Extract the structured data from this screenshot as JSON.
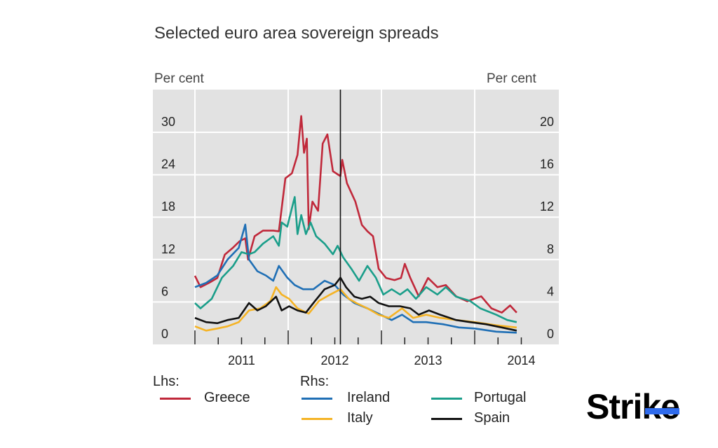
{
  "chart_data": {
    "type": "line",
    "title": "Selected euro area sovereign spreads",
    "ylabel_left": "Per cent",
    "ylabel_right": "Per cent",
    "ylim_left": [
      0,
      30
    ],
    "ylim_right": [
      0,
      20
    ],
    "yticks_left": [
      "0",
      "6",
      "12",
      "18",
      "24",
      "30"
    ],
    "yticks_right": [
      "0",
      "4",
      "8",
      "12",
      "16",
      "20"
    ],
    "xticks": [
      "2011",
      "2012",
      "2013",
      "2014"
    ],
    "xlim": [
      2010.8,
      2014.9
    ],
    "grid": true,
    "vertical_marker": 2012.56,
    "legend": {
      "lhs_label": "Lhs:",
      "rhs_label": "Rhs:",
      "placement": "bottom"
    },
    "series": [
      {
        "name": "Greece",
        "axis": "left",
        "color": "#c0283a",
        "points": [
          [
            2011.0,
            9.7
          ],
          [
            2011.06,
            8.1
          ],
          [
            2011.15,
            8.7
          ],
          [
            2011.24,
            9.4
          ],
          [
            2011.32,
            12.7
          ],
          [
            2011.41,
            13.7
          ],
          [
            2011.48,
            14.6
          ],
          [
            2011.54,
            15.0
          ],
          [
            2011.57,
            12.0
          ],
          [
            2011.64,
            15.3
          ],
          [
            2011.73,
            16.1
          ],
          [
            2011.84,
            16.1
          ],
          [
            2011.9,
            16.0
          ],
          [
            2011.97,
            23.5
          ],
          [
            2012.04,
            24.2
          ],
          [
            2012.1,
            26.8
          ],
          [
            2012.14,
            32.3
          ],
          [
            2012.17,
            27.1
          ],
          [
            2012.2,
            29.1
          ],
          [
            2012.22,
            16.3
          ],
          [
            2012.26,
            20.2
          ],
          [
            2012.32,
            18.9
          ],
          [
            2012.37,
            28.4
          ],
          [
            2012.42,
            29.7
          ],
          [
            2012.48,
            24.5
          ],
          [
            2012.56,
            23.8
          ],
          [
            2012.58,
            26.1
          ],
          [
            2012.63,
            22.8
          ],
          [
            2012.72,
            20.2
          ],
          [
            2012.79,
            16.9
          ],
          [
            2012.85,
            16.0
          ],
          [
            2012.91,
            15.3
          ],
          [
            2012.97,
            10.7
          ],
          [
            2013.05,
            9.4
          ],
          [
            2013.14,
            9.1
          ],
          [
            2013.21,
            9.4
          ],
          [
            2013.25,
            11.4
          ],
          [
            2013.31,
            9.4
          ],
          [
            2013.4,
            6.8
          ],
          [
            2013.5,
            9.4
          ],
          [
            2013.6,
            8.1
          ],
          [
            2013.69,
            8.4
          ],
          [
            2013.8,
            6.8
          ],
          [
            2013.92,
            6.1
          ],
          [
            2014.07,
            6.8
          ],
          [
            2014.18,
            5.1
          ],
          [
            2014.29,
            4.5
          ],
          [
            2014.38,
            5.5
          ],
          [
            2014.45,
            4.5
          ]
        ]
      },
      {
        "name": "Portugal",
        "axis": "right",
        "color": "#1a9e8a",
        "points": [
          [
            2011.0,
            3.9
          ],
          [
            2011.06,
            3.4
          ],
          [
            2011.18,
            4.3
          ],
          [
            2011.29,
            6.3
          ],
          [
            2011.41,
            7.4
          ],
          [
            2011.5,
            8.7
          ],
          [
            2011.58,
            8.5
          ],
          [
            2011.64,
            8.7
          ],
          [
            2011.73,
            9.5
          ],
          [
            2011.84,
            10.2
          ],
          [
            2011.9,
            9.3
          ],
          [
            2011.93,
            11.5
          ],
          [
            2011.99,
            11.1
          ],
          [
            2012.07,
            13.9
          ],
          [
            2012.1,
            10.4
          ],
          [
            2012.14,
            12.2
          ],
          [
            2012.19,
            10.4
          ],
          [
            2012.24,
            11.5
          ],
          [
            2012.3,
            10.2
          ],
          [
            2012.39,
            9.5
          ],
          [
            2012.48,
            8.5
          ],
          [
            2012.53,
            9.3
          ],
          [
            2012.59,
            8.2
          ],
          [
            2012.68,
            7.1
          ],
          [
            2012.76,
            6.0
          ],
          [
            2012.85,
            7.4
          ],
          [
            2012.94,
            6.3
          ],
          [
            2013.02,
            4.7
          ],
          [
            2013.11,
            5.2
          ],
          [
            2013.2,
            4.7
          ],
          [
            2013.28,
            5.2
          ],
          [
            2013.37,
            4.3
          ],
          [
            2013.48,
            5.4
          ],
          [
            2013.6,
            4.7
          ],
          [
            2013.69,
            5.4
          ],
          [
            2013.8,
            4.5
          ],
          [
            2013.95,
            4.1
          ],
          [
            2014.06,
            3.4
          ],
          [
            2014.23,
            2.8
          ],
          [
            2014.35,
            2.3
          ],
          [
            2014.45,
            2.1
          ]
        ]
      },
      {
        "name": "Ireland",
        "axis": "right",
        "color": "#1f6fb5",
        "points": [
          [
            2011.0,
            5.4
          ],
          [
            2011.12,
            5.8
          ],
          [
            2011.24,
            6.5
          ],
          [
            2011.35,
            8.0
          ],
          [
            2011.47,
            9.1
          ],
          [
            2011.54,
            11.3
          ],
          [
            2011.58,
            8.0
          ],
          [
            2011.67,
            6.9
          ],
          [
            2011.76,
            6.5
          ],
          [
            2011.84,
            6.0
          ],
          [
            2011.9,
            7.4
          ],
          [
            2011.99,
            6.3
          ],
          [
            2012.07,
            5.6
          ],
          [
            2012.16,
            5.2
          ],
          [
            2012.27,
            5.2
          ],
          [
            2012.39,
            6.0
          ],
          [
            2012.5,
            5.6
          ],
          [
            2012.59,
            4.7
          ],
          [
            2012.71,
            3.9
          ],
          [
            2012.85,
            3.4
          ],
          [
            2012.99,
            2.8
          ],
          [
            2013.11,
            2.3
          ],
          [
            2013.22,
            2.8
          ],
          [
            2013.34,
            2.1
          ],
          [
            2013.48,
            2.1
          ],
          [
            2013.66,
            1.9
          ],
          [
            2013.83,
            1.6
          ],
          [
            2014.0,
            1.5
          ],
          [
            2014.23,
            1.2
          ],
          [
            2014.45,
            1.1
          ]
        ]
      },
      {
        "name": "Italy",
        "axis": "right",
        "color": "#f5b324",
        "points": [
          [
            2011.0,
            1.7
          ],
          [
            2011.12,
            1.3
          ],
          [
            2011.24,
            1.5
          ],
          [
            2011.35,
            1.7
          ],
          [
            2011.47,
            2.1
          ],
          [
            2011.58,
            3.2
          ],
          [
            2011.7,
            3.4
          ],
          [
            2011.81,
            4.1
          ],
          [
            2011.87,
            5.4
          ],
          [
            2011.93,
            4.7
          ],
          [
            2012.01,
            4.3
          ],
          [
            2012.1,
            3.4
          ],
          [
            2012.22,
            2.9
          ],
          [
            2012.33,
            4.1
          ],
          [
            2012.45,
            4.7
          ],
          [
            2012.56,
            5.2
          ],
          [
            2012.65,
            4.3
          ],
          [
            2012.73,
            3.9
          ],
          [
            2012.85,
            3.4
          ],
          [
            2012.97,
            2.8
          ],
          [
            2013.08,
            2.5
          ],
          [
            2013.22,
            3.4
          ],
          [
            2013.34,
            2.5
          ],
          [
            2013.48,
            2.8
          ],
          [
            2013.63,
            2.5
          ],
          [
            2013.8,
            2.3
          ],
          [
            2014.0,
            2.1
          ],
          [
            2014.23,
            1.8
          ],
          [
            2014.45,
            1.6
          ]
        ]
      },
      {
        "name": "Spain",
        "axis": "right",
        "color": "#111111",
        "points": [
          [
            2011.0,
            2.5
          ],
          [
            2011.12,
            2.1
          ],
          [
            2011.24,
            2.0
          ],
          [
            2011.35,
            2.3
          ],
          [
            2011.47,
            2.5
          ],
          [
            2011.58,
            3.9
          ],
          [
            2011.67,
            3.2
          ],
          [
            2011.76,
            3.6
          ],
          [
            2011.87,
            4.5
          ],
          [
            2011.93,
            3.2
          ],
          [
            2012.01,
            3.6
          ],
          [
            2012.1,
            3.2
          ],
          [
            2012.19,
            3.0
          ],
          [
            2012.27,
            3.9
          ],
          [
            2012.39,
            5.2
          ],
          [
            2012.5,
            5.6
          ],
          [
            2012.56,
            6.3
          ],
          [
            2012.62,
            5.4
          ],
          [
            2012.71,
            4.5
          ],
          [
            2012.79,
            4.3
          ],
          [
            2012.88,
            4.5
          ],
          [
            2012.97,
            3.9
          ],
          [
            2013.08,
            3.6
          ],
          [
            2013.2,
            3.6
          ],
          [
            2013.31,
            3.4
          ],
          [
            2013.4,
            2.8
          ],
          [
            2013.51,
            3.2
          ],
          [
            2013.63,
            2.8
          ],
          [
            2013.8,
            2.3
          ],
          [
            2013.95,
            2.1
          ],
          [
            2014.12,
            1.9
          ],
          [
            2014.29,
            1.6
          ],
          [
            2014.45,
            1.3
          ]
        ]
      }
    ]
  },
  "logo": {
    "text_main": "Stri",
    "text_k": "k",
    "text_e": "e",
    "accent": "#2f6bed"
  }
}
